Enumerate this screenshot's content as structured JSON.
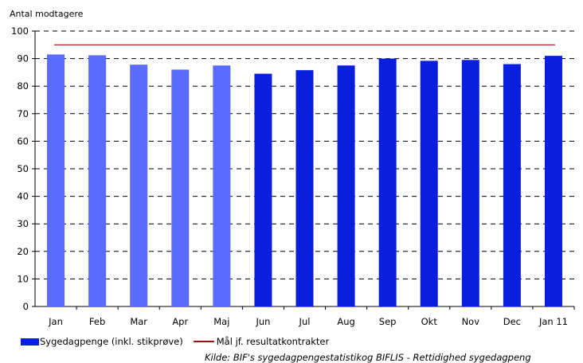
{
  "chart_data": {
    "type": "bar",
    "ylabel": "Antal modtagere",
    "ylim": [
      0,
      100
    ],
    "yticks": [
      0,
      10,
      20,
      30,
      40,
      50,
      60,
      70,
      80,
      90,
      100
    ],
    "categories": [
      "Jan",
      "Feb",
      "Mar",
      "Apr",
      "Maj",
      "Jun",
      "Jul",
      "Aug",
      "Sep",
      "Okt",
      "Nov",
      "Dec",
      "Jan 11"
    ],
    "series": [
      {
        "name": "Sygedagpenge (inkl. stikprøve)",
        "values": [
          91.5,
          91.2,
          87.8,
          86.0,
          87.5,
          84.5,
          85.8,
          87.5,
          90.0,
          89.2,
          89.5,
          88.0,
          91.0
        ],
        "colors": [
          "#5b6bff",
          "#5b6bff",
          "#5b6bff",
          "#5b6bff",
          "#5b6bff",
          "#0a1ee0",
          "#0a1ee0",
          "#0a1ee0",
          "#0a1ee0",
          "#0a1ee0",
          "#0a1ee0",
          "#0a1ee0",
          "#0a1ee0"
        ]
      },
      {
        "name": "Mål jf. resultatkontrakter",
        "type": "line",
        "value": 95,
        "color": "#a01010"
      }
    ],
    "grid": "dashed horizontal",
    "legend_position": "bottom-left",
    "source": "Kilde: BIF's sygedagpengestatistikog BIFLIS - Rettidighed sygedagpeng"
  }
}
